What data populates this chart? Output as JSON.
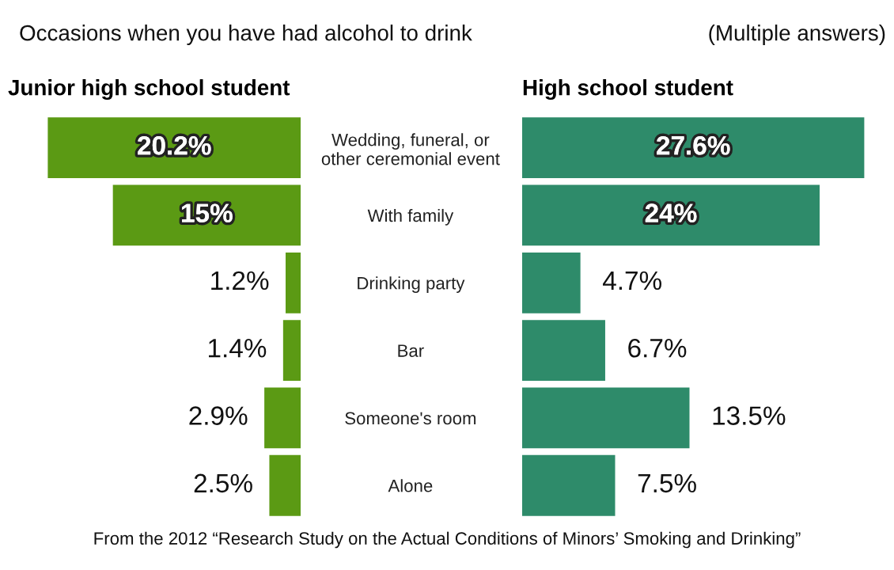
{
  "chart_data": [
    {
      "type": "bar",
      "orientation": "horizontal",
      "title": "Junior high school student",
      "categories": [
        "Wedding, funeral, or\nother ceremonial event",
        "With family",
        "Drinking party",
        "Bar",
        "Someone's room",
        "Alone"
      ],
      "values": [
        20.2,
        15,
        1.2,
        1.4,
        2.9,
        2.5
      ],
      "value_labels": [
        "20.2%",
        "15%",
        "1.2%",
        "1.4%",
        "2.9%",
        "2.5%"
      ],
      "color": "#5b9a14",
      "tick_labels": "y",
      "grid": false,
      "legend": false,
      "annotations": [
        "Occasions when you have had alcohol to drink",
        "(Multiple answers)",
        "From the 2012 “Research Study on the Actual Conditions of Minors’ Smoking and Drinking”"
      ]
    },
    {
      "type": "bar",
      "orientation": "horizontal",
      "title": "High school student",
      "values": [
        27.6,
        24,
        4.7,
        6.7,
        13.5,
        7.5
      ],
      "value_labels": [
        "27.6%",
        "24%",
        "4.7%",
        "6.7%",
        "13.5%",
        "7.5%"
      ],
      "color": "#2e8b6a",
      "tick_labels": false,
      "grid": false,
      "legend": false
    }
  ]
}
